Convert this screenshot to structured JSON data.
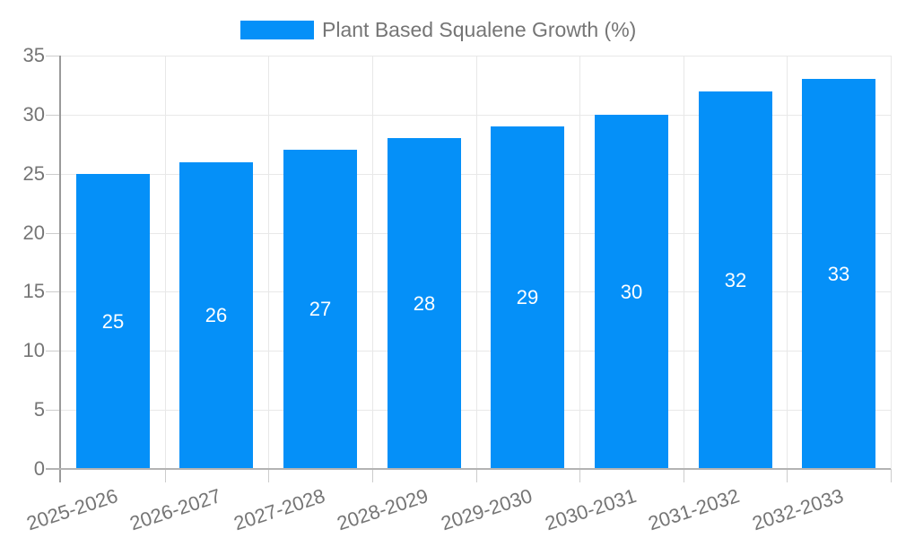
{
  "chart_data": {
    "type": "bar",
    "title": "Plant Based Squalene Growth (%)",
    "legend": {
      "label": "Plant Based Squalene Growth (%)",
      "position": "top"
    },
    "categories": [
      "2025-2026",
      "2026-2027",
      "2027-2028",
      "2028-2029",
      "2029-2030",
      "2030-2031",
      "2031-2032",
      "2032-2033"
    ],
    "values": [
      25,
      26,
      27,
      28,
      29,
      30,
      32,
      33
    ],
    "xlabel": "",
    "ylabel": "",
    "ylim": [
      0,
      35
    ],
    "yticks": [
      0,
      5,
      10,
      15,
      20,
      25,
      30,
      35
    ],
    "grid": true
  },
  "colors": {
    "bar": "#0590f8",
    "bar_label": "#ffffff",
    "axis_text": "#757575",
    "gridline": "#e8e8e8",
    "baseline": "#b3b3b3",
    "axis_line": "#9a9a9a",
    "tick": "#cccccc",
    "background": "#ffffff"
  }
}
